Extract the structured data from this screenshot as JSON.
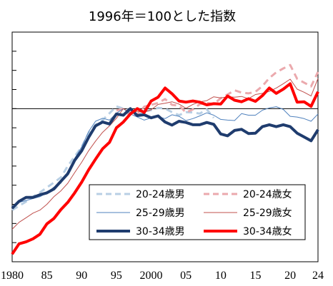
{
  "chart_data": {
    "type": "line",
    "title": "1996年＝100とした指数",
    "xlim": [
      1980,
      2024
    ],
    "ylim": [
      60,
      120
    ],
    "baseline": 100,
    "grid": false,
    "legend_position": "bottom-right",
    "x_tick_labels": [
      "1980",
      "85",
      "90",
      "95",
      "2000",
      "05",
      "10",
      "15",
      "20",
      "24"
    ],
    "x_tick_values": [
      1980,
      1985,
      1990,
      1995,
      2000,
      2005,
      2010,
      2015,
      2020,
      2024
    ],
    "y_tick_values": [
      60,
      65,
      70,
      75,
      80,
      85,
      90,
      95,
      100,
      105,
      110,
      115,
      120
    ],
    "series": [
      {
        "name": "20-24歳男",
        "color": "#b8cfe4",
        "style": "dashed",
        "width": 3,
        "x": [
          1980,
          1981,
          1982,
          1983,
          1984,
          1985,
          1986,
          1987,
          1988,
          1989,
          1990,
          1991,
          1992,
          1993,
          1994,
          1995,
          1996,
          1997,
          1998,
          1999,
          2000,
          2001,
          2002,
          2003,
          2004,
          2005,
          2006,
          2007,
          2008,
          2009
        ],
        "y": [
          73.5,
          74.6,
          75.7,
          77.0,
          78.1,
          79.4,
          80.7,
          82.0,
          85.0,
          87.5,
          90.0,
          93.5,
          95.8,
          97.0,
          98.8,
          100.6,
          100.0,
          99.5,
          98.3,
          99.3,
          99.6,
          100.2,
          100.0,
          99.1,
          98.3,
          99.1,
          99.0,
          98.7,
          99.8,
          97.6
        ]
      },
      {
        "name": "20-24歳女",
        "color": "#eba9ad",
        "style": "dashed",
        "width": 3,
        "x": [
          1995,
          1996,
          1997,
          1998,
          1999,
          2000,
          2001,
          2002,
          2003,
          2004,
          2005,
          2006,
          2007,
          2008,
          2009,
          2010,
          2011,
          2012,
          2013,
          2014,
          2015,
          2016,
          2017,
          2018,
          2019,
          2020,
          2021,
          2022,
          2023,
          2024
        ],
        "y": [
          99.5,
          100.0,
          98.0,
          98.5,
          100.5,
          101.0,
          101.5,
          102.5,
          101.0,
          100.8,
          99.0,
          99.8,
          101.2,
          101.5,
          101.2,
          102.7,
          103.7,
          104.8,
          104.2,
          104.0,
          104.4,
          105.9,
          108.0,
          109.5,
          110.5,
          111.4,
          107.8,
          106.8,
          105.8,
          109.6
        ]
      },
      {
        "name": "25-29歳男",
        "color": "#4f81bd",
        "style": "solid",
        "width": 1,
        "x": [
          1980,
          1981,
          1982,
          1983,
          1984,
          1985,
          1986,
          1987,
          1988,
          1989,
          1990,
          1991,
          1992,
          1993,
          1994,
          1995,
          1996,
          1997,
          1998,
          1999,
          2000,
          2001,
          2002,
          2003,
          2004,
          2005,
          2006,
          2007,
          2008,
          2009,
          2010,
          2011,
          2012,
          2013,
          2014,
          2015,
          2016,
          2017,
          2018,
          2019,
          2020,
          2021,
          2022,
          2023,
          2024
        ],
        "y": [
          74.5,
          75.5,
          76.0,
          76.5,
          77.0,
          78.0,
          79.5,
          80.5,
          83.5,
          87.0,
          90.0,
          94.0,
          96.7,
          97.5,
          97.0,
          98.8,
          100.0,
          98.6,
          97.8,
          97.0,
          97.6,
          97.9,
          97.4,
          98.4,
          98.0,
          96.9,
          97.4,
          98.1,
          98.9,
          98.3,
          97.2,
          97.0,
          96.9,
          98.7,
          98.3,
          98.3,
          99.6,
          100.2,
          100.5,
          99.8,
          98.0,
          97.8,
          97.4,
          96.7,
          98.6
        ]
      },
      {
        "name": "25-29歳女",
        "color": "#c0504d",
        "style": "solid",
        "width": 1,
        "x": [
          1980,
          1981,
          1982,
          1983,
          1984,
          1985,
          1986,
          1987,
          1988,
          1989,
          1990,
          1991,
          1992,
          1993,
          1994,
          1995,
          1996,
          1997,
          1998,
          1999,
          2000,
          2001,
          2002,
          2003,
          2004,
          2005,
          2006,
          2007,
          2008,
          2009,
          2010,
          2011,
          2012,
          2013,
          2014,
          2015,
          2016,
          2017,
          2018,
          2019,
          2020,
          2021,
          2022,
          2023,
          2024
        ],
        "y": [
          68.5,
          70.3,
          71.5,
          72.7,
          73.5,
          75.0,
          77.0,
          78.5,
          80.5,
          83.3,
          86.0,
          89.0,
          91.5,
          93.8,
          95.5,
          97.5,
          100.0,
          99.0,
          99.3,
          99.1,
          99.7,
          101.1,
          101.4,
          101.8,
          101.2,
          100.1,
          101.1,
          101.8,
          102.1,
          103.1,
          102.8,
          103.1,
          103.0,
          103.2,
          102.6,
          103.7,
          104.0,
          104.5,
          105.4,
          106.5,
          107.7,
          105.1,
          104.3,
          103.3,
          107.9
        ]
      },
      {
        "name": "30-34歳男",
        "color": "#1f3c6e",
        "style": "solid",
        "width": 4,
        "x": [
          1980,
          1981,
          1982,
          1983,
          1984,
          1985,
          1986,
          1987,
          1988,
          1989,
          1990,
          1991,
          1992,
          1993,
          1994,
          1995,
          1996,
          1997,
          1998,
          1999,
          2000,
          2001,
          2002,
          2003,
          2004,
          2005,
          2006,
          2007,
          2008,
          2009,
          2010,
          2011,
          2012,
          2013,
          2014,
          2015,
          2016,
          2017,
          2018,
          2019,
          2020,
          2021,
          2022,
          2023,
          2024
        ],
        "y": [
          74.0,
          75.8,
          76.8,
          76.8,
          77.5,
          78.0,
          79.0,
          81.0,
          83.0,
          86.5,
          89.0,
          92.5,
          95.5,
          96.5,
          96.0,
          98.6,
          98.3,
          100.0,
          98.2,
          98.4,
          97.6,
          98.1,
          96.5,
          95.7,
          96.7,
          96.4,
          95.8,
          95.8,
          96.4,
          95.9,
          93.4,
          92.9,
          94.3,
          94.6,
          93.5,
          93.6,
          95.3,
          95.8,
          95.3,
          95.8,
          95.3,
          93.6,
          92.6,
          91.6,
          94.5
        ]
      },
      {
        "name": "30-34歳女",
        "color": "#ff0000",
        "style": "solid",
        "width": 4,
        "x": [
          1980,
          1981,
          1982,
          1983,
          1984,
          1985,
          1986,
          1987,
          1988,
          1989,
          1990,
          1991,
          1992,
          1993,
          1994,
          1995,
          1996,
          1997,
          1998,
          1999,
          2000,
          2001,
          2002,
          2003,
          2004,
          2005,
          2006,
          2007,
          2008,
          2009,
          2010,
          2011,
          2012,
          2013,
          2014,
          2015,
          2016,
          2017,
          2018,
          2019,
          2020,
          2021,
          2022,
          2023,
          2024
        ],
        "y": [
          62.0,
          64.7,
          65.2,
          66.0,
          67.2,
          69.9,
          71.3,
          73.6,
          75.5,
          78.0,
          80.8,
          84.0,
          86.8,
          89.5,
          91.2,
          95.0,
          96.5,
          98.6,
          100.0,
          99.0,
          102.0,
          103.0,
          105.4,
          103.9,
          102.0,
          101.7,
          102.0,
          101.7,
          101.0,
          101.3,
          101.2,
          103.3,
          102.2,
          101.8,
          102.6,
          101.9,
          103.4,
          105.4,
          104.0,
          105.1,
          106.5,
          101.7,
          101.8,
          100.6,
          104.4
        ]
      }
    ]
  }
}
